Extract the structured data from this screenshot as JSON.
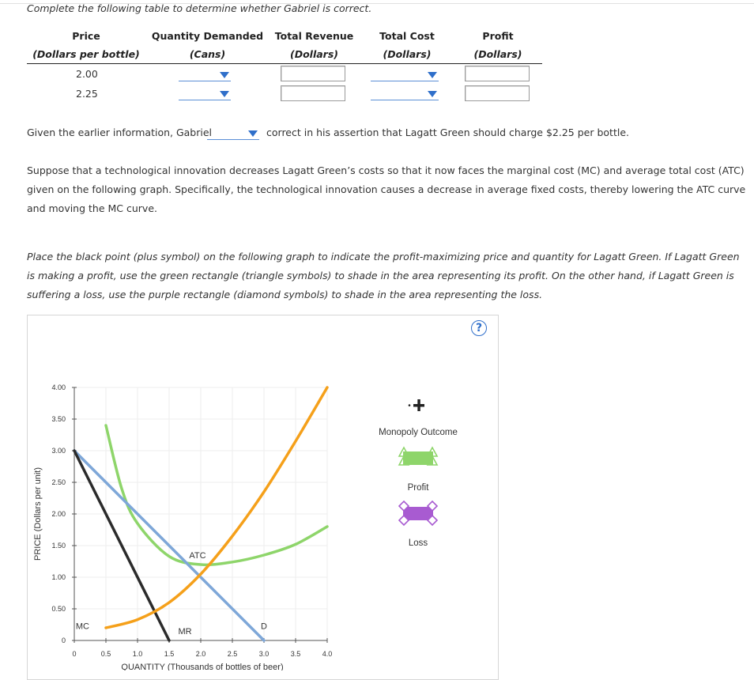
{
  "intro": "Complete the following table to determine whether Gabriel is correct.",
  "table": {
    "headers": [
      {
        "title": "Price",
        "unit": "(Dollars per bottle)"
      },
      {
        "title": "Quantity Demanded",
        "unit": "(Cans)"
      },
      {
        "title": "Total Revenue",
        "unit": "(Dollars)"
      },
      {
        "title": "Total Cost",
        "unit": "(Dollars)"
      },
      {
        "title": "Profit",
        "unit": "(Dollars)"
      }
    ],
    "rows": [
      {
        "price": "2.00",
        "quantity_demanded": "",
        "total_revenue": "",
        "total_cost": "",
        "profit": ""
      },
      {
        "price": "2.25",
        "quantity_demanded": "",
        "total_revenue": "",
        "total_cost": "",
        "profit": ""
      }
    ]
  },
  "sentence": {
    "before": "Given the earlier information, Gabriel",
    "dropdown_value": "",
    "after": "correct in his assertion that Lagatt Green should charge $2.25 per bottle."
  },
  "paragraph1": "Suppose that a technological innovation decreases Lagatt Green’s costs so that it now faces the marginal cost (MC) and average total cost (ATC) given on the following graph. Specifically, the technological innovation causes a decrease in average fixed costs, thereby lowering the ATC curve and moving the MC curve.",
  "paragraph2": "Place the black point (plus symbol) on the following graph to indicate the profit-maximizing price and quantity for Lagatt Green. If Lagatt Green is making a profit, use the green rectangle (triangle symbols) to shade in the area representing its profit. On the other hand, if Lagatt Green is suffering a loss, use the purple rectangle (diamond symbols) to shade in the area representing the loss.",
  "help_icon": "?",
  "legend": {
    "monopoly_outcome": "Monopoly Outcome",
    "profit": "Profit",
    "loss": "Loss"
  },
  "colors": {
    "mc": "#f5a01a",
    "atc": "#8ed56a",
    "demand": "#7ea7d8",
    "mr": "#2b2b2b",
    "profit": "#8ed56a",
    "loss": "#a85bd1",
    "link": "#2f6fca"
  },
  "chart_data": {
    "type": "line",
    "xlabel": "QUANTITY (Thousands of bottles of beer)",
    "ylabel": "PRICE (Dollars per unit)",
    "xlim": [
      0,
      4.0
    ],
    "ylim": [
      0,
      4.0
    ],
    "x_ticks": [
      "0",
      "0.5",
      "1.0",
      "1.5",
      "2.0",
      "2.5",
      "3.0",
      "3.5",
      "4.0"
    ],
    "y_ticks": [
      "0",
      "0.50",
      "1.00",
      "1.50",
      "2.00",
      "2.50",
      "3.00",
      "3.50",
      "4.00"
    ],
    "series": [
      {
        "name": "MC",
        "points": [
          [
            0.5,
            0.2
          ],
          [
            1.0,
            0.33
          ],
          [
            1.5,
            0.6
          ],
          [
            2.0,
            1.05
          ],
          [
            2.5,
            1.65
          ],
          [
            3.0,
            2.35
          ],
          [
            3.5,
            3.15
          ],
          [
            4.0,
            4.0
          ]
        ]
      },
      {
        "name": "ATC",
        "points": [
          [
            0.5,
            3.4
          ],
          [
            0.75,
            2.4
          ],
          [
            1.0,
            1.85
          ],
          [
            1.5,
            1.33
          ],
          [
            2.0,
            1.2
          ],
          [
            2.5,
            1.24
          ],
          [
            3.0,
            1.35
          ],
          [
            3.5,
            1.52
          ],
          [
            4.0,
            1.8
          ]
        ]
      },
      {
        "name": "D",
        "points": [
          [
            0,
            3.0
          ],
          [
            3.0,
            0
          ]
        ]
      },
      {
        "name": "MR",
        "points": [
          [
            0,
            3.0
          ],
          [
            1.5,
            0
          ]
        ]
      }
    ],
    "annotations": [
      "ATC",
      "D",
      "MR",
      "MC"
    ]
  }
}
